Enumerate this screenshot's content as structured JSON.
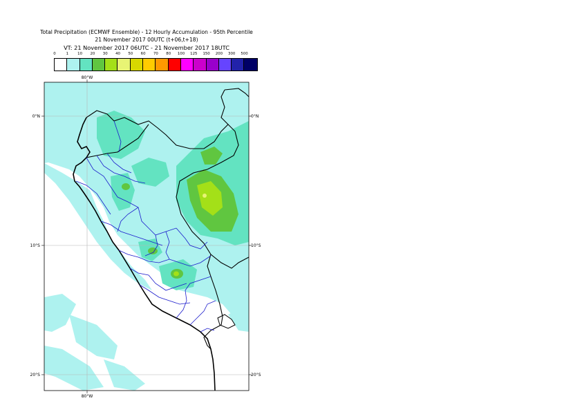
{
  "title": {
    "line1": "Total Precipitation (ECMWF Ensemble) - 12 Hourly Accumulation - 95th Percentile",
    "line2": "21 November 2017 00UTC (t+06,t+18)",
    "line3": "VT: 21 November 2017 06UTC - 21 November 2017 18UTC"
  },
  "legend": {
    "labels": [
      "0",
      "1",
      "10",
      "20",
      "30",
      "40",
      "50",
      "60",
      "70",
      "80",
      "100",
      "125",
      "150",
      "200",
      "300",
      "500"
    ],
    "colors": [
      "#ffffff",
      "#aef2ef",
      "#63e3c1",
      "#60c640",
      "#a4e018",
      "#e8f474",
      "#d8d800",
      "#ffcc00",
      "#ff9900",
      "#ff0000",
      "#ff00ff",
      "#cc00cc",
      "#9900cc",
      "#6644ff",
      "#2222aa",
      "#000066"
    ]
  },
  "map": {
    "lon_labels_top": [
      "80°W"
    ],
    "lon_labels_bottom": [
      "80°W"
    ],
    "lat_labels_left": [
      "0°N",
      "10°S",
      "20°S"
    ],
    "lat_labels_right": [
      "0°N",
      "10°S",
      "20°S"
    ],
    "region": "Peru"
  }
}
